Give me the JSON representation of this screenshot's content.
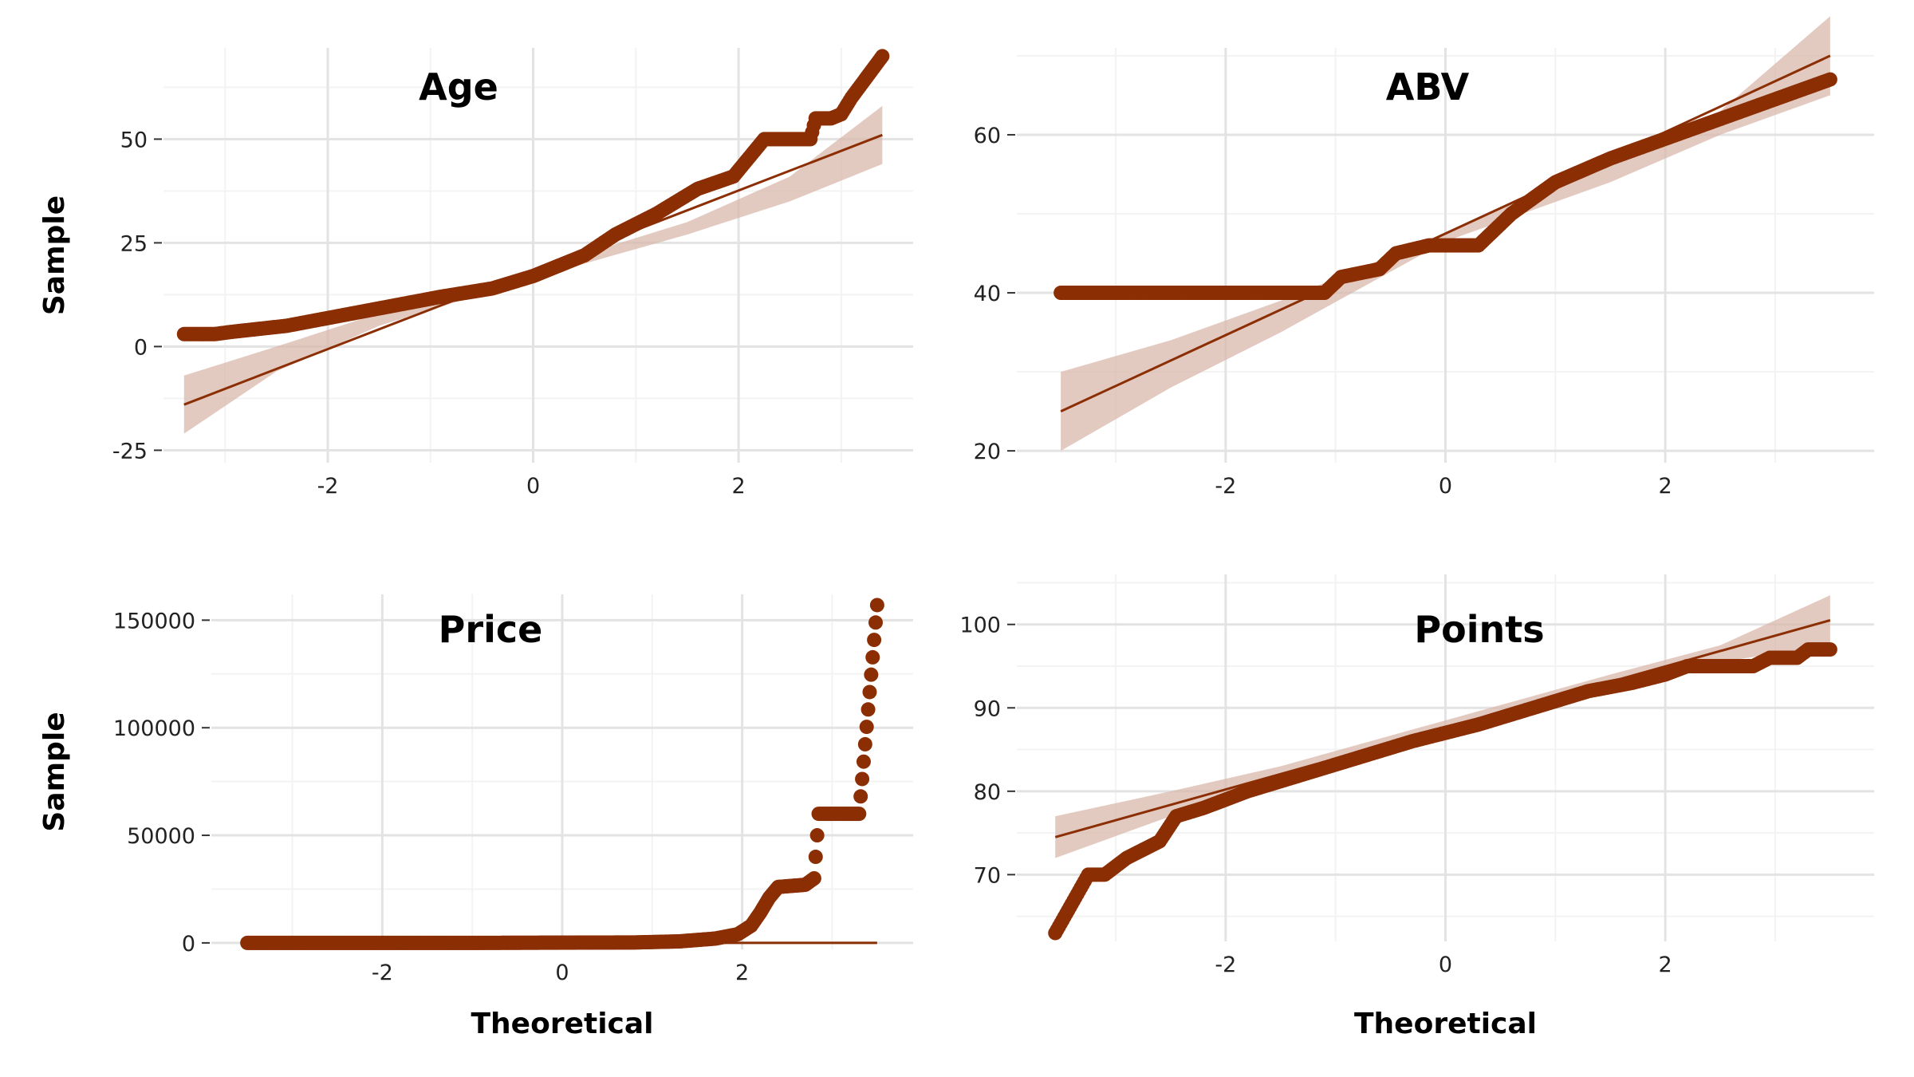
{
  "colors": {
    "point": "#8B2E04",
    "line": "#8B2E04",
    "band": "#D9B8AC"
  },
  "chart_data": [
    {
      "type": "scatter",
      "id": "age",
      "title": "Age",
      "xlabel": "",
      "ylabel": "Sample",
      "xlim": [
        -3.6,
        3.7
      ],
      "ylim": [
        -28,
        72
      ],
      "xticks": [
        -2,
        0,
        2
      ],
      "xtick_labels": [
        "-2",
        "0",
        "2"
      ],
      "yticks": [
        -25,
        0,
        25,
        50
      ],
      "ytick_labels": [
        "-25",
        "0",
        "25",
        "50"
      ],
      "grid": true,
      "ref_line": [
        [
          -3.4,
          -14
        ],
        [
          3.4,
          51
        ]
      ],
      "band_upper": [
        [
          -3.4,
          -7
        ],
        [
          -2.5,
          0
        ],
        [
          -1.5,
          8
        ],
        [
          0,
          18.5
        ],
        [
          1.5,
          30
        ],
        [
          2.5,
          41
        ],
        [
          3.4,
          58
        ]
      ],
      "band_lower": [
        [
          -3.4,
          -21
        ],
        [
          -2.5,
          -6
        ],
        [
          -1.5,
          5
        ],
        [
          0,
          16.5
        ],
        [
          1.5,
          27
        ],
        [
          2.5,
          35
        ],
        [
          3.4,
          44
        ]
      ],
      "quantiles": [
        [
          -3.4,
          3
        ],
        [
          -3.1,
          3
        ],
        [
          -2.95,
          3.5
        ],
        [
          -2.4,
          5
        ],
        [
          -0.9,
          12
        ],
        [
          -0.4,
          14
        ],
        [
          0,
          17
        ],
        [
          0.2,
          19
        ],
        [
          0.5,
          22
        ],
        [
          0.8,
          27
        ],
        [
          1.2,
          32
        ],
        [
          1.6,
          38
        ],
        [
          1.95,
          41
        ],
        [
          2.15,
          47
        ],
        [
          2.25,
          50
        ],
        [
          2.7,
          50
        ],
        [
          2.75,
          55
        ],
        [
          2.9,
          55
        ],
        [
          3.0,
          56
        ],
        [
          3.1,
          60
        ],
        [
          3.4,
          70
        ]
      ]
    },
    {
      "type": "scatter",
      "id": "abv",
      "title": "ABV",
      "xlabel": "",
      "ylabel": "",
      "xlim": [
        -3.9,
        3.9
      ],
      "ylim": [
        18.5,
        71
      ],
      "xticks": [
        -2,
        0,
        2
      ],
      "xtick_labels": [
        "-2",
        "0",
        "2"
      ],
      "yticks": [
        20,
        40,
        60
      ],
      "ytick_labels": [
        "20",
        "40",
        "60"
      ],
      "grid": true,
      "ref_line": [
        [
          -3.5,
          25
        ],
        [
          3.5,
          70
        ]
      ],
      "band_upper": [
        [
          -3.5,
          30
        ],
        [
          -2.5,
          34
        ],
        [
          -1.5,
          39
        ],
        [
          0,
          47.5
        ],
        [
          1.5,
          57
        ],
        [
          2.5,
          63
        ],
        [
          3.5,
          75
        ]
      ],
      "band_lower": [
        [
          -3.5,
          20
        ],
        [
          -2.5,
          28
        ],
        [
          -1.5,
          35
        ],
        [
          0,
          46.5
        ],
        [
          1.5,
          54
        ],
        [
          2.5,
          60
        ],
        [
          3.5,
          65
        ]
      ],
      "quantiles": [
        [
          -3.5,
          40
        ],
        [
          -3.2,
          40
        ],
        [
          -3.05,
          40
        ],
        [
          -2.9,
          40
        ],
        [
          -1.1,
          40
        ],
        [
          -0.95,
          42
        ],
        [
          -0.6,
          43
        ],
        [
          -0.45,
          45
        ],
        [
          -0.15,
          46
        ],
        [
          0.3,
          46
        ],
        [
          0.6,
          50
        ],
        [
          1.0,
          54
        ],
        [
          1.5,
          57
        ],
        [
          2.0,
          59.5
        ],
        [
          2.5,
          62
        ],
        [
          2.9,
          64
        ],
        [
          3.2,
          65.5
        ],
        [
          3.3,
          66
        ],
        [
          3.5,
          67
        ]
      ]
    },
    {
      "type": "scatter",
      "id": "price",
      "title": "Price",
      "xlabel": "Theoretical",
      "ylabel": "Sample",
      "xlim": [
        -3.9,
        3.9
      ],
      "ylim": [
        -3000,
        162000
      ],
      "xticks": [
        -2,
        0,
        2
      ],
      "xtick_labels": [
        "-2",
        "0",
        "2"
      ],
      "yticks": [
        0,
        50000,
        100000,
        150000
      ],
      "ytick_labels": [
        "0",
        "50000",
        "100000",
        "150000"
      ],
      "grid": true,
      "ref_line": [
        [
          -3.5,
          0
        ],
        [
          3.5,
          0
        ]
      ],
      "band_upper": [],
      "band_lower": [],
      "quantiles": [
        [
          -3.5,
          0
        ],
        [
          -3.2,
          0
        ],
        [
          -3.0,
          0
        ],
        [
          -1.0,
          0
        ],
        [
          0.8,
          200
        ],
        [
          1.3,
          700
        ],
        [
          1.7,
          2000
        ],
        [
          1.95,
          4000
        ],
        [
          2.1,
          8000
        ],
        [
          2.2,
          14000
        ],
        [
          2.3,
          21000
        ],
        [
          2.4,
          26000
        ],
        [
          2.7,
          27000
        ],
        [
          2.8,
          30000
        ],
        [
          2.85,
          60000
        ],
        [
          3.1,
          60000
        ],
        [
          3.3,
          60000
        ],
        [
          3.5,
          157000
        ]
      ]
    },
    {
      "type": "scatter",
      "id": "points",
      "title": "Points",
      "xlabel": "Theoretical",
      "ylabel": "",
      "xlim": [
        -3.9,
        3.9
      ],
      "ylim": [
        62,
        106
      ],
      "xticks": [
        -2,
        0,
        2
      ],
      "xtick_labels": [
        "-2",
        "0",
        "2"
      ],
      "yticks": [
        70,
        80,
        90,
        100
      ],
      "ytick_labels": [
        "70",
        "80",
        "90",
        "100"
      ],
      "grid": true,
      "ref_line": [
        [
          -3.55,
          74.5
        ],
        [
          3.5,
          100.5
        ]
      ],
      "band_upper": [
        [
          -3.55,
          77
        ],
        [
          -2.5,
          80
        ],
        [
          -1.5,
          83
        ],
        [
          0,
          88.5
        ],
        [
          1.5,
          94
        ],
        [
          2.5,
          97.5
        ],
        [
          3.5,
          103.5
        ]
      ],
      "band_lower": [
        [
          -3.55,
          72
        ],
        [
          -2.5,
          77
        ],
        [
          -1.5,
          81
        ],
        [
          0,
          87.5
        ],
        [
          1.5,
          92.5
        ],
        [
          2.5,
          95.5
        ],
        [
          3.5,
          97.5
        ]
      ],
      "quantiles": [
        [
          -3.55,
          63
        ],
        [
          -3.25,
          70
        ],
        [
          -3.1,
          70
        ],
        [
          -2.9,
          72
        ],
        [
          -2.6,
          74
        ],
        [
          -2.45,
          77
        ],
        [
          -2.2,
          78
        ],
        [
          -1.8,
          80
        ],
        [
          -1.3,
          82
        ],
        [
          -0.8,
          84
        ],
        [
          -0.3,
          86
        ],
        [
          0.3,
          88
        ],
        [
          0.8,
          90
        ],
        [
          1.3,
          92
        ],
        [
          1.7,
          93
        ],
        [
          2.0,
          94
        ],
        [
          2.2,
          95
        ],
        [
          2.8,
          95
        ],
        [
          2.95,
          96
        ],
        [
          3.2,
          96
        ],
        [
          3.3,
          97
        ],
        [
          3.5,
          97
        ]
      ]
    }
  ]
}
